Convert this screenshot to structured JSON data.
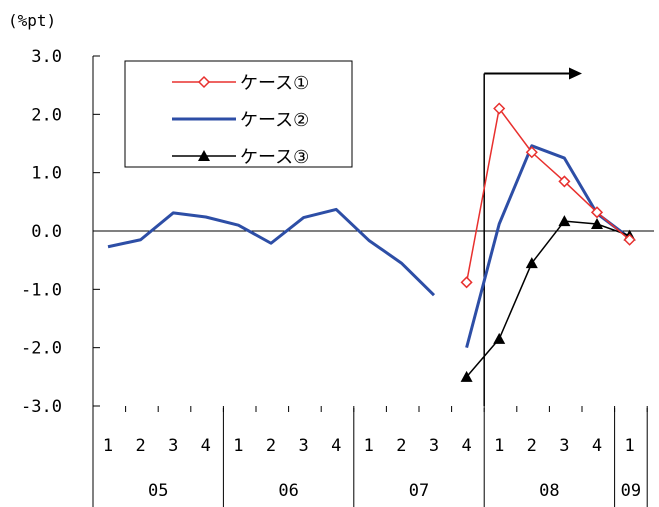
{
  "chart_data": {
    "type": "line",
    "ylabel": "(%pt)",
    "ylim": [
      -3.0,
      3.0
    ],
    "yticks": [
      "3.0",
      "2.0",
      "1.0",
      "0.0",
      "-1.0",
      "-2.0",
      "-3.0"
    ],
    "quarters": [
      "1",
      "2",
      "3",
      "4",
      "1",
      "2",
      "3",
      "4",
      "1",
      "2",
      "3",
      "4",
      "1",
      "2",
      "3",
      "4",
      "1"
    ],
    "years": [
      {
        "label": "05",
        "start": 0,
        "end": 3
      },
      {
        "label": "06",
        "start": 4,
        "end": 7
      },
      {
        "label": "07",
        "start": 8,
        "end": 11
      },
      {
        "label": "08",
        "start": 12,
        "end": 15
      },
      {
        "label": "09",
        "start": 16,
        "end": 16
      }
    ],
    "arrow": {
      "from_index": 11.5,
      "to_index": 14.5,
      "level": 2.7
    },
    "series": [
      {
        "name": "ケース①",
        "color": "#e8302e",
        "marker": "diamond-open",
        "values": [
          null,
          null,
          null,
          null,
          null,
          null,
          null,
          null,
          null,
          null,
          null,
          -0.88,
          2.1,
          1.35,
          0.85,
          0.32,
          -0.15
        ]
      },
      {
        "name": "ケース②",
        "color": "#2d4ea6",
        "marker": "none",
        "values": [
          -0.27,
          -0.15,
          0.31,
          0.24,
          0.1,
          -0.21,
          0.23,
          0.37,
          -0.16,
          -0.55,
          -1.1,
          -2.0,
          0.12,
          1.46,
          1.25,
          0.3,
          -0.12
        ]
      },
      {
        "name": "ケース③",
        "color": "#000000",
        "marker": "triangle-filled",
        "values": [
          null,
          null,
          null,
          null,
          null,
          null,
          null,
          null,
          null,
          null,
          null,
          -2.5,
          -1.85,
          -0.55,
          0.17,
          0.12,
          -0.08
        ]
      }
    ]
  }
}
